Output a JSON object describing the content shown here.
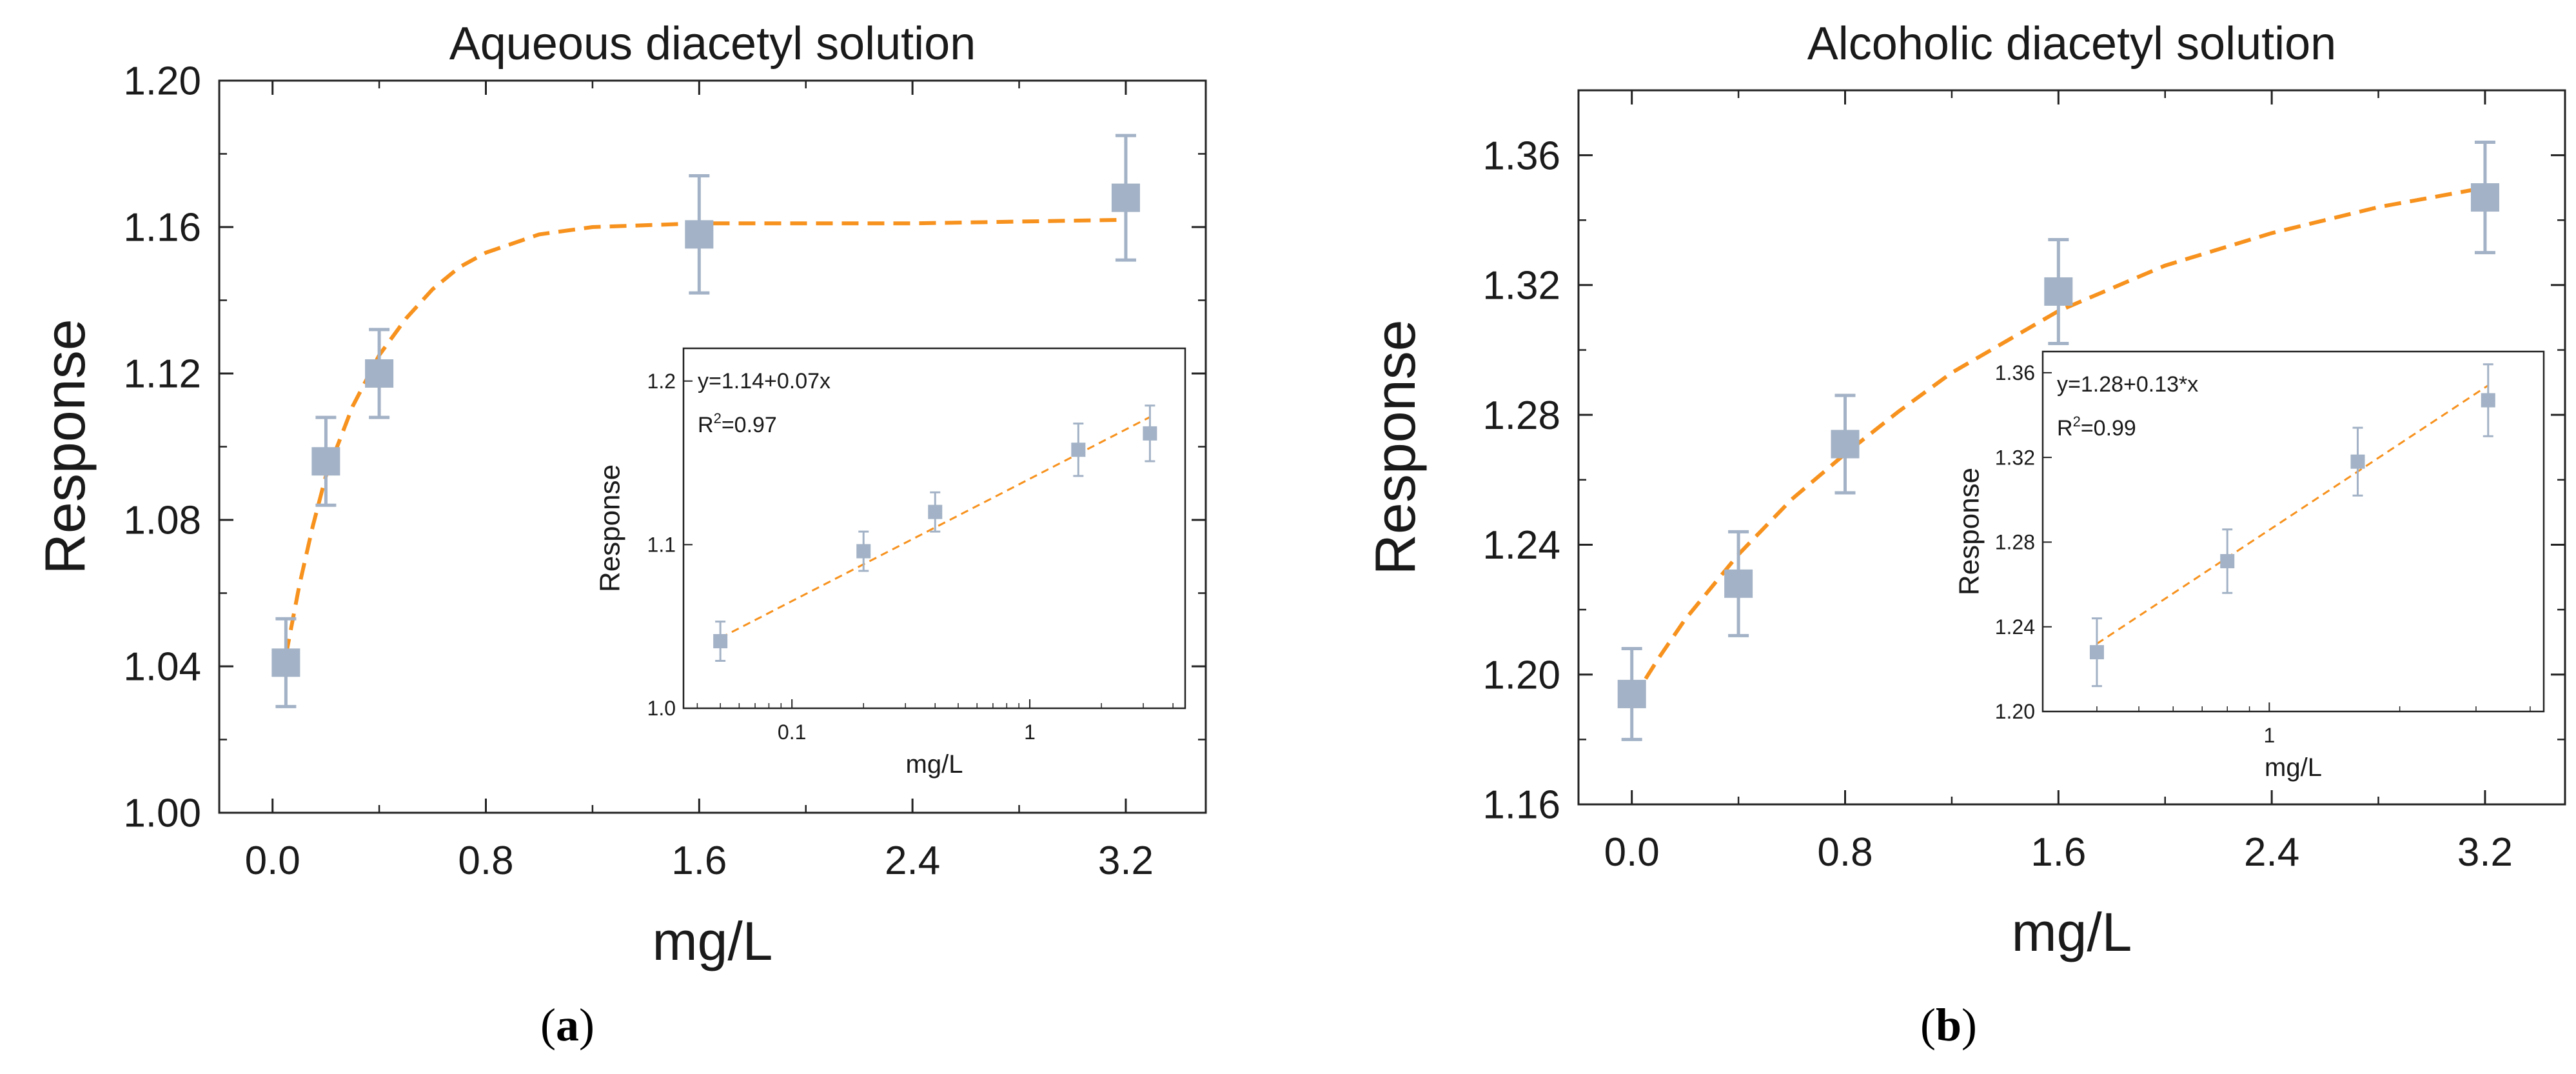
{
  "chart_data": [
    {
      "type": "scatter",
      "title": "Aqueous diacetyl solution",
      "xlabel": "mg/L",
      "ylabel": "Response",
      "xlim": [
        -0.2,
        3.5
      ],
      "ylim": [
        1.0,
        1.2
      ],
      "xticks": [
        0.0,
        0.8,
        1.6,
        2.4,
        3.2
      ],
      "xtick_labels": [
        "0.0",
        "0.8",
        "1.6",
        "2.4",
        "3.2"
      ],
      "yticks": [
        1.0,
        1.04,
        1.08,
        1.12,
        1.16,
        1.2
      ],
      "ytick_labels": [
        "1.00",
        "1.04",
        "1.08",
        "1.12",
        "1.16",
        "1.20"
      ],
      "points": [
        {
          "x": 0.05,
          "y": 1.041,
          "err": 0.012
        },
        {
          "x": 0.2,
          "y": 1.096,
          "err": 0.012
        },
        {
          "x": 0.4,
          "y": 1.12,
          "err": 0.012
        },
        {
          "x": 1.6,
          "y": 1.158,
          "err": 0.016
        },
        {
          "x": 3.2,
          "y": 1.168,
          "err": 0.017
        }
      ],
      "fit_curve": [
        [
          0.05,
          1.043
        ],
        [
          0.1,
          1.062
        ],
        [
          0.15,
          1.078
        ],
        [
          0.2,
          1.092
        ],
        [
          0.3,
          1.111
        ],
        [
          0.4,
          1.125
        ],
        [
          0.5,
          1.135
        ],
        [
          0.6,
          1.143
        ],
        [
          0.7,
          1.149
        ],
        [
          0.8,
          1.153
        ],
        [
          1.0,
          1.158
        ],
        [
          1.2,
          1.16
        ],
        [
          1.6,
          1.161
        ],
        [
          2.4,
          1.161
        ],
        [
          3.2,
          1.162
        ]
      ],
      "inset": {
        "type": "scatter",
        "xscale": "log",
        "xlabel": "mg/L",
        "ylabel": "Response",
        "xlim": [
          0.035,
          4.5
        ],
        "ylim": [
          1.0,
          1.22
        ],
        "xticks": [
          0.1,
          1
        ],
        "xtick_labels": [
          "0.1",
          "1"
        ],
        "yticks": [
          1.0,
          1.1,
          1.2
        ],
        "ytick_labels": [
          "1.0",
          "1.1",
          "1.2"
        ],
        "equation": "y=1.14+0.07x",
        "r2_label": "R",
        "r2_value": "=0.97",
        "fit_line": [
          [
            0.05,
            1.043
          ],
          [
            3.2,
            1.178
          ]
        ]
      }
    },
    {
      "type": "scatter",
      "title": "Alcoholic diacetyl solution",
      "xlabel": "mg/L",
      "ylabel": "Response",
      "xlim": [
        -0.2,
        3.5
      ],
      "ylim": [
        1.16,
        1.38
      ],
      "xticks": [
        0.0,
        0.8,
        1.6,
        2.4,
        3.2
      ],
      "xtick_labels": [
        "0.0",
        "0.8",
        "1.6",
        "2.4",
        "3.2"
      ],
      "yticks": [
        1.16,
        1.2,
        1.24,
        1.28,
        1.32,
        1.36
      ],
      "ytick_labels": [
        "1.16",
        "1.20",
        "1.24",
        "1.28",
        "1.32",
        "1.36"
      ],
      "points": [
        {
          "x": 0.0,
          "y": 1.194,
          "err": 0.014
        },
        {
          "x": 0.4,
          "y": 1.228,
          "err": 0.016
        },
        {
          "x": 0.8,
          "y": 1.271,
          "err": 0.015
        },
        {
          "x": 1.6,
          "y": 1.318,
          "err": 0.016
        },
        {
          "x": 3.2,
          "y": 1.347,
          "err": 0.017
        }
      ],
      "fit_curve": [
        [
          0.0,
          1.192
        ],
        [
          0.1,
          1.205
        ],
        [
          0.2,
          1.217
        ],
        [
          0.4,
          1.237
        ],
        [
          0.6,
          1.254
        ],
        [
          0.8,
          1.268
        ],
        [
          1.0,
          1.281
        ],
        [
          1.2,
          1.293
        ],
        [
          1.6,
          1.312
        ],
        [
          2.0,
          1.326
        ],
        [
          2.4,
          1.336
        ],
        [
          2.8,
          1.344
        ],
        [
          3.2,
          1.35
        ]
      ],
      "inset": {
        "type": "scatter",
        "xscale": "log",
        "xlabel": "mg/L",
        "ylabel": "Response",
        "xlim": [
          0.3,
          4.3
        ],
        "ylim": [
          1.2,
          1.37
        ],
        "xticks": [
          1
        ],
        "xtick_labels": [
          "1"
        ],
        "yticks": [
          1.2,
          1.24,
          1.28,
          1.32,
          1.36
        ],
        "ytick_labels": [
          "1.20",
          "1.24",
          "1.28",
          "1.32",
          "1.36"
        ],
        "equation": "y=1.28+0.13*x",
        "r2_label": "R",
        "r2_value": "=0.99",
        "fit_line": [
          [
            0.4,
            1.232
          ],
          [
            3.2,
            1.354
          ]
        ]
      }
    }
  ],
  "panel_labels": [
    "a",
    "b"
  ]
}
